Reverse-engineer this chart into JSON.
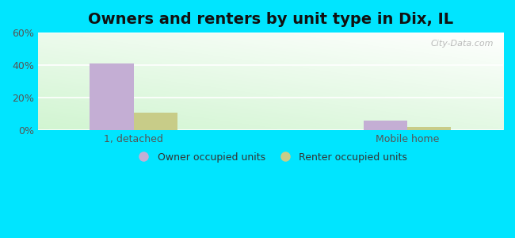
{
  "title": "Owners and renters by unit type in Dix, IL",
  "categories": [
    "1, detached",
    "Mobile home"
  ],
  "owner_values": [
    40.9,
    6.1
  ],
  "renter_values": [
    10.6,
    2.0
  ],
  "owner_color": "#c4aed4",
  "renter_color": "#c8cc88",
  "owner_label": "Owner occupied units",
  "renter_label": "Renter occupied units",
  "ylim": [
    0,
    60
  ],
  "yticks": [
    0,
    20,
    40,
    60
  ],
  "ytick_labels": [
    "0%",
    "20%",
    "40%",
    "60%"
  ],
  "outer_bg": "#00e5ff",
  "bar_width": 0.32,
  "group_positions": [
    1.0,
    3.0
  ],
  "watermark": "City-Data.com",
  "title_fontsize": 14
}
